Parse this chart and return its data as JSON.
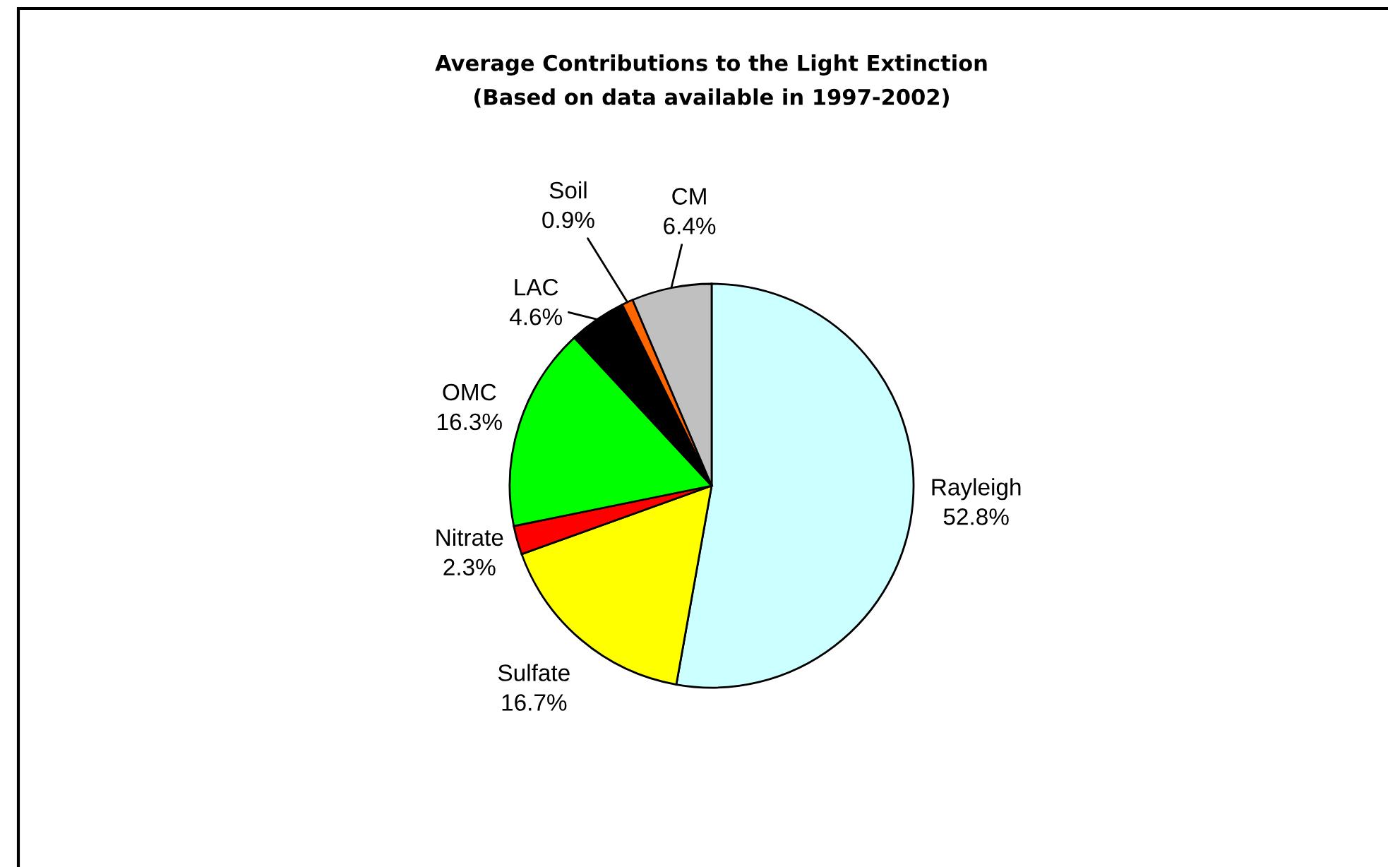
{
  "chart_data": {
    "type": "pie",
    "title": "Average Contributions to the Light Extinction",
    "subtitle": "(Based on data available in 1997-2002)",
    "categories": [
      "Rayleigh",
      "Sulfate",
      "Nitrate",
      "OMC",
      "LAC",
      "Soil",
      "CM"
    ],
    "values": [
      52.8,
      16.7,
      2.3,
      16.3,
      4.6,
      0.9,
      6.4
    ],
    "value_labels": [
      "52.8%",
      "16.7%",
      "2.3%",
      "16.3%",
      "4.6%",
      "0.9%",
      "6.4%"
    ],
    "colors": [
      "#ccffff",
      "#ffff00",
      "#ff0000",
      "#00ff00",
      "#000000",
      "#ff6600",
      "#c0c0c0"
    ]
  }
}
